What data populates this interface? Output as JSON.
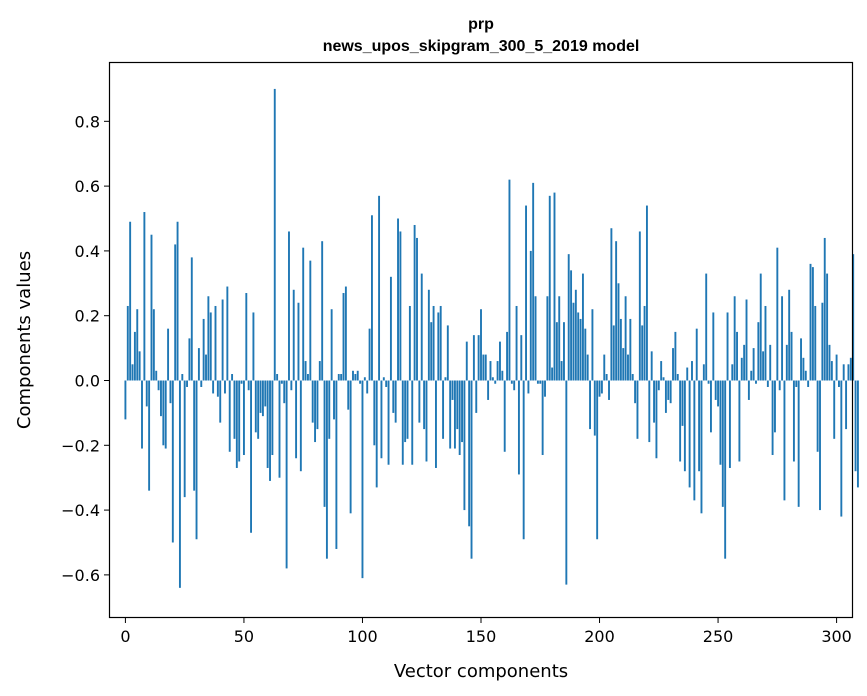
{
  "chart_data": {
    "type": "bar",
    "title": "рrр",
    "subtitle": "news_upos_skipgram_300_5_2019 model",
    "xlabel": "Vector components",
    "ylabel": "Components values",
    "xlim": [
      -6.5,
      306.5
    ],
    "ylim": [
      -0.73,
      0.98
    ],
    "xticks": [
      0,
      50,
      100,
      150,
      200,
      250,
      300
    ],
    "yticks": [
      -0.6,
      -0.4,
      -0.2,
      0.0,
      0.2,
      0.4,
      0.6,
      0.8
    ],
    "ytick_labels": [
      "−0.6",
      "−0.4",
      "−0.2",
      "0.0",
      "0.2",
      "0.4",
      "0.6",
      "0.8"
    ],
    "grid": false,
    "bar_color": "#1f77b4",
    "values": [
      -0.12,
      0.23,
      0.49,
      0.05,
      0.15,
      0.22,
      0.09,
      -0.21,
      0.52,
      -0.08,
      -0.34,
      0.45,
      0.22,
      0.03,
      -0.03,
      -0.11,
      -0.2,
      -0.21,
      0.16,
      -0.07,
      -0.5,
      0.42,
      0.49,
      -0.64,
      0.02,
      -0.36,
      -0.02,
      0.13,
      0.38,
      -0.34,
      -0.49,
      0.1,
      -0.02,
      0.19,
      0.08,
      0.26,
      0.21,
      -0.04,
      0.23,
      -0.05,
      -0.13,
      0.25,
      -0.04,
      0.29,
      -0.22,
      0.02,
      -0.18,
      -0.27,
      -0.25,
      -0.01,
      -0.23,
      0.27,
      -0.03,
      -0.47,
      0.21,
      -0.16,
      -0.18,
      -0.1,
      -0.11,
      -0.08,
      -0.27,
      -0.31,
      -0.23,
      0.9,
      0.02,
      -0.3,
      -0.01,
      -0.07,
      -0.58,
      0.46,
      -0.03,
      0.28,
      -0.24,
      0.24,
      -0.28,
      0.41,
      0.06,
      0.02,
      0.37,
      -0.13,
      -0.19,
      -0.15,
      0.06,
      0.43,
      -0.39,
      -0.55,
      -0.18,
      0.22,
      -0.12,
      -0.52,
      0.02,
      0.02,
      0.27,
      0.29,
      -0.09,
      -0.41,
      0.03,
      0.02,
      0.03,
      -0.01,
      -0.61,
      0.01,
      -0.04,
      0.16,
      0.51,
      -0.2,
      -0.33,
      0.57,
      -0.24,
      0.01,
      -0.02,
      -0.26,
      0.32,
      -0.1,
      -0.13,
      0.5,
      0.46,
      -0.26,
      -0.19,
      -0.18,
      0.23,
      -0.26,
      0.48,
      0.44,
      -0.13,
      0.33,
      -0.15,
      -0.25,
      0.28,
      0.18,
      0.23,
      -0.27,
      0.21,
      0.23,
      -0.18,
      0.01,
      0.17,
      -0.21,
      -0.06,
      -0.21,
      -0.15,
      -0.23,
      -0.19,
      -0.4,
      0.12,
      -0.45,
      -0.55,
      0.14,
      -0.1,
      0.14,
      0.22,
      0.08,
      0.08,
      -0.06,
      0.06,
      0.01,
      -0.01,
      0.06,
      0.12,
      0.03,
      -0.22,
      0.15,
      0.62,
      -0.01,
      -0.03,
      0.23,
      -0.29,
      0.14,
      -0.49,
      0.54,
      -0.04,
      0.4,
      0.61,
      0.26,
      -0.01,
      -0.01,
      -0.23,
      -0.05,
      0.26,
      0.57,
      0.04,
      0.58,
      0.18,
      0.26,
      0.06,
      0.18,
      -0.63,
      0.39,
      0.34,
      0.24,
      0.28,
      0.21,
      0.19,
      0.33,
      0.16,
      0.08,
      -0.15,
      0.22,
      -0.17,
      -0.49,
      -0.05,
      -0.04,
      0.08,
      0.02,
      -0.06,
      0.47,
      0.17,
      0.43,
      0.3,
      0.19,
      0.1,
      0.26,
      0.08,
      0.19,
      0.02,
      -0.07,
      -0.18,
      0.46,
      0.17,
      0.23,
      0.54,
      -0.19,
      0.09,
      -0.13,
      -0.24,
      -0.03,
      0.06,
      0.01,
      -0.1,
      -0.06,
      -0.07,
      0.1,
      0.15,
      0.02,
      -0.25,
      -0.14,
      -0.28,
      0.04,
      -0.33,
      0.06,
      -0.37,
      0.16,
      -0.28,
      -0.41,
      0.05,
      0.33,
      -0.01,
      -0.16,
      0.21,
      -0.06,
      -0.08,
      -0.26,
      -0.39,
      -0.55,
      0.21,
      -0.27,
      0.05,
      0.26,
      0.15,
      -0.25,
      0.07,
      0.11,
      0.25,
      -0.06,
      0.03,
      0.1,
      -0.01,
      0.18,
      0.33,
      0.09,
      0.23,
      -0.02,
      0.11,
      -0.23,
      -0.16,
      0.41,
      -0.03,
      0.26,
      -0.37,
      0.11,
      0.28,
      0.15,
      -0.25,
      -0.02,
      -0.39,
      0.13,
      0.07,
      0.03,
      -0.02,
      0.36,
      0.35,
      0.23,
      -0.22,
      -0.4,
      0.24,
      0.44,
      0.33,
      0.11,
      0.06,
      -0.18,
      0.08,
      -0.02,
      -0.42,
      0.05,
      -0.15,
      0.05,
      0.07,
      0.39,
      -0.28,
      -0.33
    ]
  }
}
